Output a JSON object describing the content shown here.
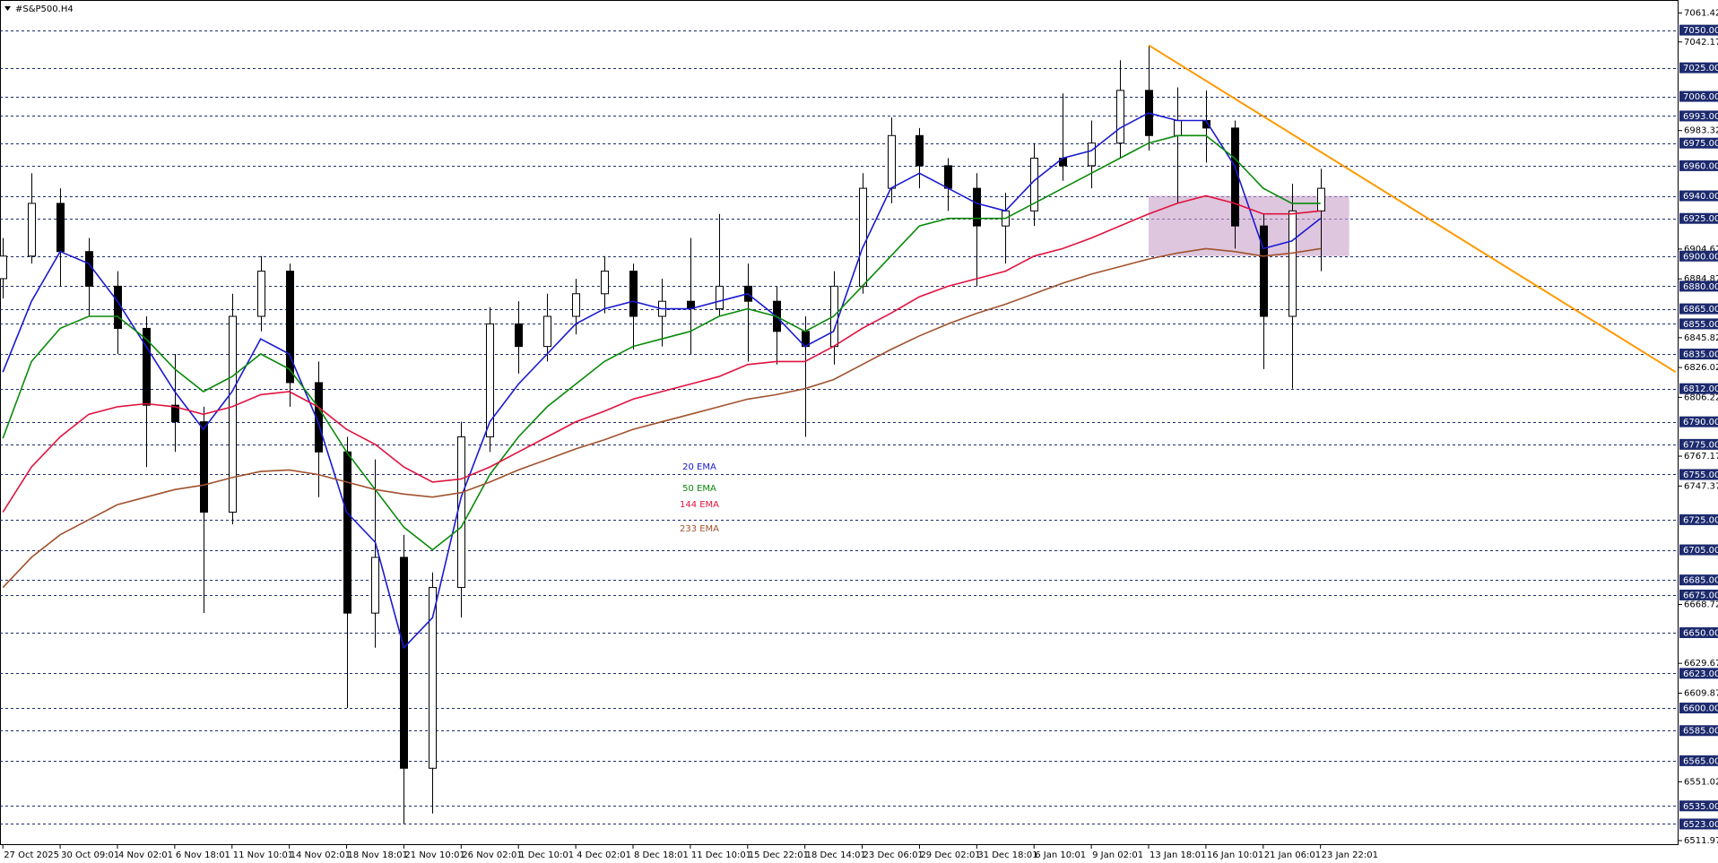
{
  "chart_data": {
    "type": "candlestick",
    "title": "#S&P500.H4",
    "categories": [
      "27 Oct 2025",
      null,
      "30 Oct 09:01",
      null,
      "4 Nov 02:01",
      null,
      "6 Nov 18:01",
      null,
      "11 Nov 10:01",
      null,
      "14 Nov 02:01",
      null,
      "18 Nov 18:01",
      null,
      "21 Nov 10:01",
      null,
      "26 Nov 02:01",
      null,
      "1 Dec 10:01",
      null,
      "4 Dec 02:01",
      null,
      "8 Dec 18:01",
      null,
      "11 Dec 10:01",
      null,
      "15 Dec 22:01",
      null,
      "18 Dec 14:01",
      null,
      "23 Dec 06:01",
      null,
      "29 Dec 02:01",
      null,
      "31 Dec 18:01",
      null,
      "6 Jan 10:01",
      null,
      "9 Jan 02:01",
      null,
      "13 Jan 18:01",
      null,
      "16 Jan 10:01",
      null,
      "21 Jan 06:01",
      null,
      "23 Jan 22:01"
    ],
    "open": [
      6885,
      6900,
      6935,
      6903,
      6880,
      6852,
      6801,
      6790,
      6730,
      6860,
      6890,
      6816,
      6770,
      6663,
      6700,
      6560,
      6680,
      6780,
      6855,
      6840,
      6860,
      6875,
      6890,
      6860,
      6870,
      6865,
      6880,
      6870,
      6850,
      6840,
      6880,
      6945,
      6980,
      6960,
      6945,
      6920,
      6930,
      6965,
      6960,
      6975,
      7010,
      6980,
      6990,
      6985,
      6920,
      6860,
      6930
    ],
    "high": [
      6912,
      6955,
      6945,
      6912,
      6890,
      6860,
      6835,
      6800,
      6875,
      6900,
      6895,
      6830,
      6780,
      6765,
      6715,
      6690,
      6790,
      6866,
      6870,
      6875,
      6885,
      6900,
      6895,
      6885,
      6912,
      6928,
      6895,
      6880,
      6860,
      6890,
      6955,
      6992,
      6985,
      6965,
      6955,
      6942,
      6975,
      7008,
      6990,
      7030,
      7040,
      7012,
      7010,
      6990,
      6928,
      6948,
      6958
    ],
    "low": [
      6872,
      6895,
      6880,
      6860,
      6835,
      6760,
      6770,
      6663,
      6722,
      6850,
      6800,
      6740,
      6600,
      6640,
      6523,
      6530,
      6660,
      6770,
      6822,
      6830,
      6848,
      6862,
      6838,
      6840,
      6835,
      6860,
      6830,
      6828,
      6780,
      6828,
      6875,
      6935,
      6945,
      6930,
      6880,
      6895,
      6920,
      6950,
      6945,
      6965,
      6970,
      6935,
      6962,
      6905,
      6825,
      6812,
      6890
    ],
    "close": [
      6900,
      6935,
      6903,
      6880,
      6852,
      6801,
      6790,
      6730,
      6860,
      6890,
      6816,
      6770,
      6663,
      6700,
      6560,
      6680,
      6780,
      6855,
      6840,
      6860,
      6875,
      6890,
      6860,
      6870,
      6865,
      6880,
      6870,
      6850,
      6840,
      6880,
      6945,
      6980,
      6960,
      6945,
      6920,
      6930,
      6965,
      6960,
      6975,
      7010,
      6980,
      6990,
      6985,
      6920,
      6860,
      6930,
      6945
    ],
    "up_color": "#ffffff",
    "down_color": "#000000",
    "ema": [
      {
        "name": "20 EMA",
        "color": "#1a1ad0",
        "values": [
          6823,
          6870,
          6903,
          6895,
          6870,
          6840,
          6810,
          6785,
          6810,
          6845,
          6835,
          6790,
          6730,
          6710,
          6640,
          6660,
          6740,
          6790,
          6815,
          6835,
          6855,
          6865,
          6870,
          6865,
          6865,
          6870,
          6875,
          6860,
          6840,
          6850,
          6905,
          6945,
          6955,
          6945,
          6935,
          6930,
          6950,
          6965,
          6970,
          6985,
          6995,
          6990,
          6990,
          6960,
          6905,
          6910,
          6925
        ]
      },
      {
        "name": "50 EMA",
        "color": "#0a8a0a",
        "values": [
          6779,
          6830,
          6852,
          6860,
          6860,
          6845,
          6825,
          6810,
          6820,
          6835,
          6825,
          6800,
          6770,
          6745,
          6720,
          6705,
          6720,
          6755,
          6780,
          6800,
          6815,
          6830,
          6840,
          6845,
          6850,
          6860,
          6865,
          6860,
          6850,
          6860,
          6880,
          6900,
          6920,
          6925,
          6925,
          6925,
          6935,
          6945,
          6955,
          6965,
          6975,
          6980,
          6980,
          6965,
          6945,
          6935,
          6935
        ]
      },
      {
        "name": "144 EMA",
        "color": "#e0123e",
        "values": [
          6730,
          6760,
          6780,
          6795,
          6800,
          6802,
          6800,
          6795,
          6800,
          6808,
          6810,
          6800,
          6785,
          6775,
          6760,
          6750,
          6752,
          6760,
          6770,
          6780,
          6790,
          6797,
          6805,
          6810,
          6815,
          6820,
          6828,
          6830,
          6830,
          6840,
          6852,
          6862,
          6873,
          6880,
          6885,
          6890,
          6900,
          6905,
          6912,
          6920,
          6928,
          6935,
          6940,
          6935,
          6928,
          6928,
          6930
        ]
      },
      {
        "name": "233 EMA",
        "color": "#a0522d",
        "values": [
          6680,
          6700,
          6715,
          6725,
          6735,
          6740,
          6745,
          6748,
          6753,
          6757,
          6758,
          6755,
          6750,
          6745,
          6742,
          6740,
          6743,
          6750,
          6758,
          6765,
          6772,
          6778,
          6785,
          6790,
          6795,
          6800,
          6805,
          6808,
          6812,
          6818,
          6828,
          6838,
          6847,
          6855,
          6862,
          6868,
          6875,
          6882,
          6888,
          6893,
          6898,
          6902,
          6905,
          6903,
          6900,
          6902,
          6905
        ]
      }
    ],
    "trendline": {
      "x": [
        40,
        58.4
      ],
      "y": [
        7040,
        6823
      ],
      "color": "#ff9900"
    },
    "zone": {
      "x": [
        40,
        47
      ],
      "y": [
        6900,
        6940
      ],
      "color": "#c8a0c8"
    },
    "ylim": [
      6509,
      7070
    ],
    "xlim": [
      -0.1,
      58.5
    ],
    "yticks": [
      7061.42,
      7042.17,
      6983.32,
      6904.67,
      6884.87,
      6845.82,
      6826.02,
      6806.22,
      6767.17,
      6747.37,
      6668.72,
      6629.67,
      6609.87,
      6551.02,
      6511.97
    ],
    "levels": [
      {
        "value": 7050,
        "label": "7050.00"
      },
      {
        "value": 7025,
        "label": "7025.00"
      },
      {
        "value": 7006,
        "label": "7006.00"
      },
      {
        "value": 6993,
        "label": "6993.00"
      },
      {
        "value": 6975,
        "label": "6975.00"
      },
      {
        "value": 6960,
        "label": "6960.00"
      },
      {
        "value": 6940,
        "label": "6940.00"
      },
      {
        "value": 6925,
        "label": "6925.00"
      },
      {
        "value": 6900,
        "label": "6900.00"
      },
      {
        "value": 6880,
        "label": "6880.00"
      },
      {
        "value": 6865,
        "label": "6865.00"
      },
      {
        "value": 6855,
        "label": "6855.00"
      },
      {
        "value": 6835,
        "label": "6835.00"
      },
      {
        "value": 6812,
        "label": "6812.00"
      },
      {
        "value": 6790,
        "label": "6790.00"
      },
      {
        "value": 6775,
        "label": "6775.00"
      },
      {
        "value": 6755,
        "label": "6755.00"
      },
      {
        "value": 6725,
        "label": "6725.00"
      },
      {
        "value": 6705,
        "label": "6705.00"
      },
      {
        "value": 6685,
        "label": "6685.00"
      },
      {
        "value": 6675,
        "label": "6675.00"
      },
      {
        "value": 6650,
        "label": "6650.00"
      },
      {
        "value": 6623,
        "label": "6623.00"
      },
      {
        "value": 6600,
        "label": "6600.00"
      },
      {
        "value": 6585,
        "label": "6585.00"
      },
      {
        "value": 6565,
        "label": "6565.00"
      },
      {
        "value": 6535,
        "label": "6535.00"
      },
      {
        "value": 6523,
        "label": "6523.00"
      }
    ],
    "level_color": "#1c2a6e"
  }
}
